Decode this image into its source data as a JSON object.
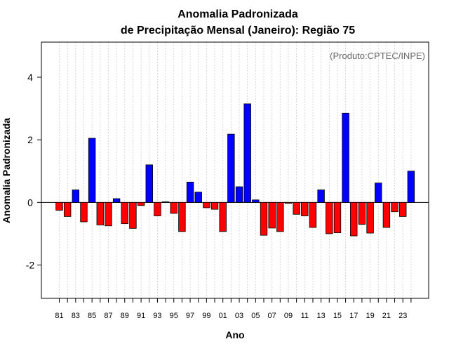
{
  "chart_data": {
    "type": "bar",
    "title": "Anomalia Padronizada",
    "subtitle": "de Precipitação Mensal (Janeiro): Região 75",
    "xlabel": "Ano",
    "ylabel": "Anomalia Padronizada",
    "source_note": "(Produto:CPTEC/INPE)",
    "ylim": [
      -3.1,
      5.1
    ],
    "yticks": [
      -2,
      0,
      2,
      4
    ],
    "ytick_labels": [
      "-2",
      "0",
      "2",
      "4"
    ],
    "grid": "vertical dotted",
    "colors": {
      "positive": "#0000ff",
      "negative": "#ff0000",
      "grid": "#cccccc"
    },
    "categories": [
      "81",
      "82",
      "83",
      "84",
      "85",
      "86",
      "87",
      "88",
      "89",
      "90",
      "91",
      "92",
      "93",
      "94",
      "95",
      "96",
      "97",
      "98",
      "99",
      "00",
      "01",
      "02",
      "03",
      "04",
      "05",
      "06",
      "07",
      "08",
      "09",
      "10",
      "11",
      "12",
      "13",
      "14",
      "15",
      "16",
      "17",
      "18",
      "19",
      "20",
      "21",
      "22",
      "23",
      "24"
    ],
    "tick_labels": [
      "81",
      "",
      "83",
      "",
      "85",
      "",
      "87",
      "",
      "89",
      "",
      "91",
      "",
      "93",
      "",
      "95",
      "",
      "97",
      "",
      "99",
      "",
      "01",
      "",
      "03",
      "",
      "05",
      "",
      "07",
      "",
      "09",
      "",
      "11",
      "",
      "13",
      "",
      "15",
      "",
      "17",
      "",
      "19",
      "",
      "21",
      "",
      "23",
      ""
    ],
    "values": [
      -0.25,
      -0.45,
      0.4,
      -0.62,
      2.05,
      -0.72,
      -0.75,
      0.12,
      -0.68,
      -0.83,
      -0.1,
      1.2,
      -0.43,
      0.02,
      -0.35,
      -0.93,
      0.65,
      0.33,
      -0.17,
      -0.22,
      -0.93,
      2.18,
      0.5,
      3.15,
      0.08,
      -1.05,
      -0.82,
      -0.93,
      -0.03,
      -0.38,
      -0.43,
      -0.8,
      0.4,
      -1.0,
      -0.97,
      2.85,
      -1.07,
      -0.7,
      -0.98,
      0.62,
      -0.8,
      -0.3,
      -0.45,
      1.0
    ]
  }
}
